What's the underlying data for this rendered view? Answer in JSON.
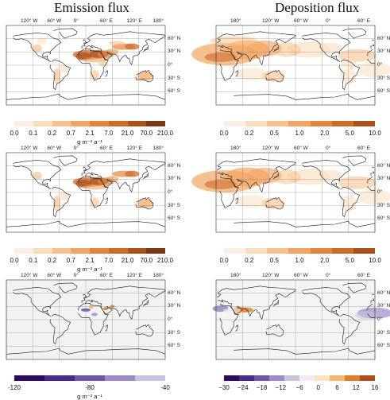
{
  "titles": {
    "emission": "Emission flux",
    "deposition": "Deposition flux"
  },
  "lon_labels_left": [
    "120° W",
    "60° W",
    "0°",
    "60° E",
    "120° E",
    "180°"
  ],
  "lon_labels_right": [
    "180°",
    "120° W",
    "60° W",
    "0°",
    "60° E"
  ],
  "lat_labels": [
    "60° N",
    "30° N",
    "0°",
    "30° S",
    "60° S"
  ],
  "unit": "g m⁻² a⁻¹",
  "colorbars": {
    "emission_abs": [
      "0.0",
      "0.1",
      "0.2",
      "0.7",
      "2.1",
      "7.0",
      "21.0",
      "70.0",
      "210.0"
    ],
    "deposition_abs": [
      "0.0",
      "0.2",
      "0.5",
      "1.0",
      "2.0",
      "5.0",
      "10.0"
    ],
    "emission_diff": [
      "-120",
      "-80",
      "-40"
    ],
    "deposition_diff": [
      "−30",
      "−24",
      "−18",
      "−12",
      "−6",
      "0",
      "6",
      "12",
      "16"
    ]
  },
  "colors": {
    "orange_scale": [
      "#fdf0e2",
      "#fbdcbc",
      "#f8c28e",
      "#f2a563",
      "#e5853e",
      "#cf6a27",
      "#a9511b",
      "#7d3a12"
    ],
    "diff_scale": [
      "#2d0a5e",
      "#4a2a8a",
      "#6f57a8",
      "#9d8cc6",
      "#cbc2e0",
      "#f0eaf5",
      "#fde3c2",
      "#f7b76f",
      "#e07f2a",
      "#a9511b"
    ],
    "land_stroke": "#1a1a1a",
    "grid": "#777777"
  }
}
